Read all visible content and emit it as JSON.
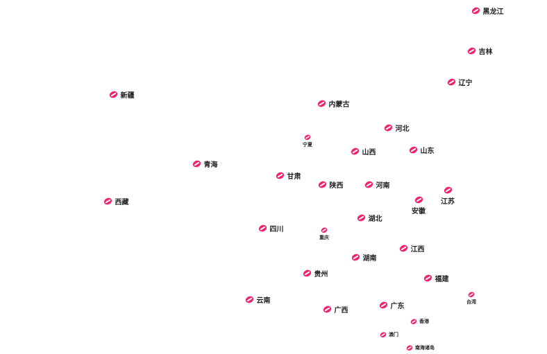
{
  "colors": {
    "marker": "#f0236e",
    "label": "#222222"
  },
  "marker_icon": "pink-capsule-icon",
  "markers": [
    {
      "name": "黑龙江",
      "size": "big",
      "label": "right"
    },
    {
      "name": "吉林",
      "size": "big",
      "label": "right"
    },
    {
      "name": "辽宁",
      "size": "big",
      "label": "right"
    },
    {
      "name": "新疆",
      "size": "big",
      "label": "right"
    },
    {
      "name": "内蒙古",
      "size": "big",
      "label": "right"
    },
    {
      "name": "河北",
      "size": "big",
      "label": "right"
    },
    {
      "name": "宁夏",
      "size": "small",
      "label": "below"
    },
    {
      "name": "山西",
      "size": "big",
      "label": "right"
    },
    {
      "name": "山东",
      "size": "big",
      "label": "right"
    },
    {
      "name": "青海",
      "size": "big",
      "label": "right"
    },
    {
      "name": "甘肃",
      "size": "big",
      "label": "right"
    },
    {
      "name": "陕西",
      "size": "big",
      "label": "right"
    },
    {
      "name": "河南",
      "size": "big",
      "label": "right"
    },
    {
      "name": "江苏",
      "size": "big",
      "label": "below"
    },
    {
      "name": "安徽",
      "size": "big",
      "label": "below"
    },
    {
      "name": "西藏",
      "size": "big",
      "label": "right"
    },
    {
      "name": "湖北",
      "size": "big",
      "label": "right"
    },
    {
      "name": "四川",
      "size": "big",
      "label": "right"
    },
    {
      "name": "重庆",
      "size": "small",
      "label": "below"
    },
    {
      "name": "江西",
      "size": "big",
      "label": "right"
    },
    {
      "name": "湖南",
      "size": "big",
      "label": "right"
    },
    {
      "name": "贵州",
      "size": "big",
      "label": "right"
    },
    {
      "name": "福建",
      "size": "big",
      "label": "right"
    },
    {
      "name": "云南",
      "size": "big",
      "label": "right"
    },
    {
      "name": "台湾",
      "size": "small",
      "label": "below"
    },
    {
      "name": "广东",
      "size": "big",
      "label": "right"
    },
    {
      "name": "广西",
      "size": "big",
      "label": "right"
    },
    {
      "name": "香港",
      "size": "small",
      "label": "right"
    },
    {
      "name": "澳门",
      "size": "small",
      "label": "right"
    },
    {
      "name": "南海诸岛",
      "size": "small",
      "label": "right"
    }
  ]
}
